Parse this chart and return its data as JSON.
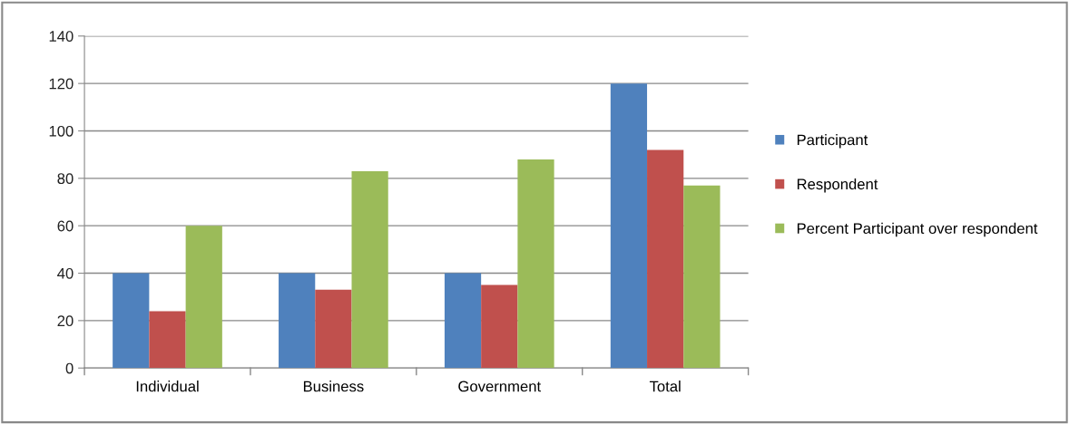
{
  "chart_data": {
    "type": "bar",
    "categories": [
      "Individual",
      "Business",
      "Government",
      "Total"
    ],
    "series": [
      {
        "name": "Participant",
        "color": "#4f81bd",
        "values": [
          40,
          40,
          40,
          120
        ]
      },
      {
        "name": "Respondent",
        "color": "#c0504d",
        "values": [
          24,
          33,
          35,
          92
        ]
      },
      {
        "name": "Percent Participant over respondent",
        "color": "#9bbb59",
        "values": [
          60,
          83,
          88,
          77
        ]
      }
    ],
    "ylim": [
      0,
      140
    ],
    "yticks": [
      0,
      20,
      40,
      60,
      80,
      100,
      120,
      140
    ],
    "grid": "y",
    "legend": "right"
  }
}
